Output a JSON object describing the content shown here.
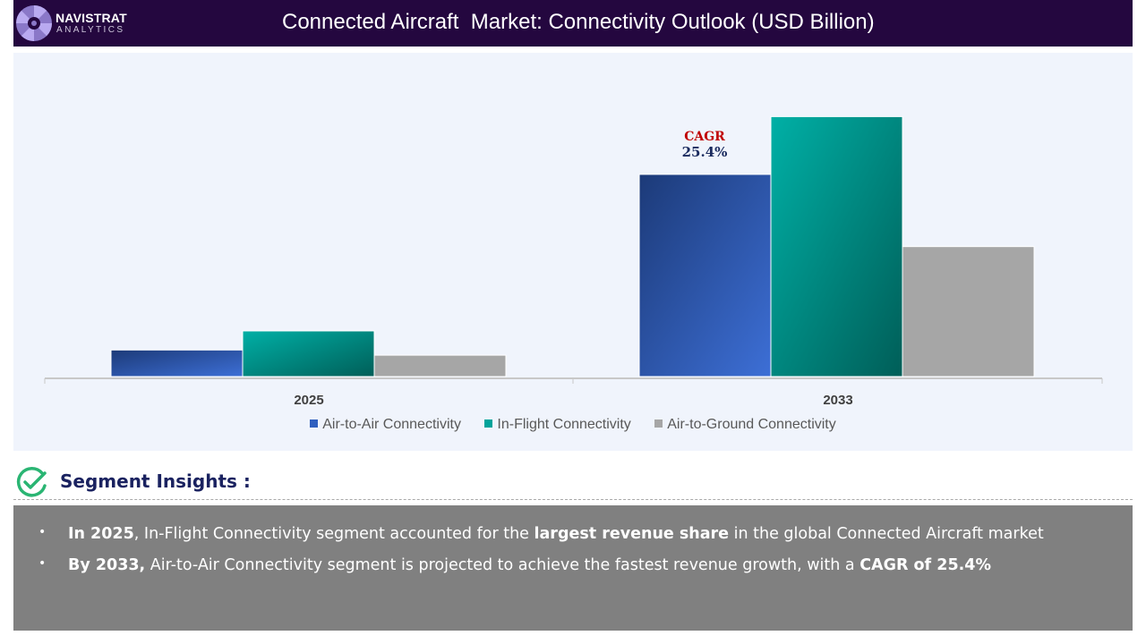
{
  "header": {
    "brand_name": "NAVISTRAT",
    "brand_sub": "ANALYTICS",
    "title": "Connected Aircraft  Market: Connectivity Outlook (USD Billion)"
  },
  "chart_data": {
    "type": "bar",
    "categories": [
      "2025",
      "2033"
    ],
    "series": [
      {
        "name": "Air-to-Air Connectivity",
        "values": [
          4.6,
          35.0
        ],
        "color": "#2f5fbf"
      },
      {
        "name": "In-Flight Connectivity",
        "values": [
          7.9,
          45.0
        ],
        "color": "#00a39a"
      },
      {
        "name": "Air-to-Ground Connectivity",
        "values": [
          3.7,
          22.5
        ],
        "color": "#a6a6a6"
      }
    ],
    "ylim": [
      0,
      48
    ],
    "grid": false,
    "legend": "bottom",
    "annotation": {
      "label": "CAGR",
      "value": "25.4%"
    }
  },
  "insights": {
    "title": "Segment Insights :",
    "bullets": [
      [
        {
          "t": "In 2025",
          "b": true
        },
        {
          "t": ", In-Flight Connectivity segment accounted for the ",
          "b": false
        },
        {
          "t": "largest revenue share",
          "b": true
        },
        {
          "t": " in the global Connected Aircraft  market",
          "b": false
        }
      ],
      [
        {
          "t": "By 2033,",
          "b": true
        },
        {
          "t": " Air-to-Air Connectivity segment is projected to achieve the fastest revenue growth, with a ",
          "b": false
        },
        {
          "t": "CAGR of 25.4%",
          "b": true
        }
      ]
    ]
  },
  "colors": {
    "header_bg": "#24073f",
    "chart_bg": "#f0f4fc",
    "insights_bg": "#808080",
    "accent_title": "#1a2260",
    "check_green": "#2ab573"
  }
}
